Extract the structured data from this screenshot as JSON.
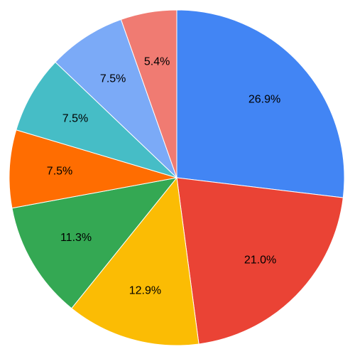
{
  "chart_data": {
    "type": "pie",
    "values": [
      26.9,
      21.0,
      12.9,
      11.3,
      7.5,
      7.5,
      7.5,
      5.4
    ],
    "value_labels": [
      "26.9%",
      "21.0%",
      "12.9%",
      "11.3%",
      "7.5%",
      "7.5%",
      "7.5%",
      "5.4%"
    ],
    "colors": [
      "#4285f4",
      "#ea4335",
      "#fbbc04",
      "#34a853",
      "#ff6d01",
      "#46bdc6",
      "#7baaf7",
      "#f07b72"
    ]
  }
}
